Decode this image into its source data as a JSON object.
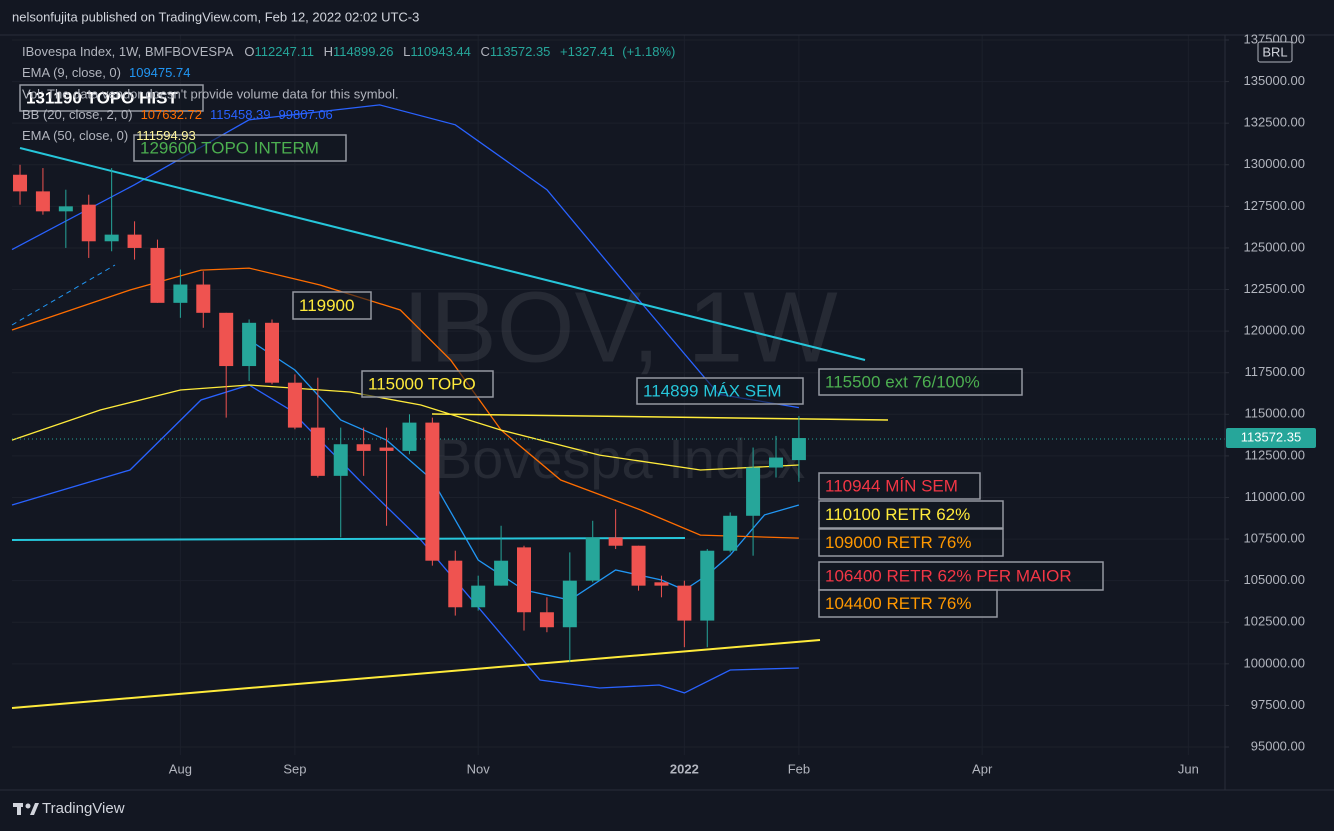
{
  "publisher": "nelsonfujita published on TradingView.com, Feb 12, 2022 02:02 UTC-3",
  "footer_brand": "TradingView",
  "chart_data": {
    "type": "candlestick",
    "title": "IBovespa Index, 1W, BMFBOVESPA",
    "currency": "BRL",
    "watermark": {
      "symbol": "IBOV, 1W",
      "description": "Bovespa Index"
    },
    "legend_letters": [
      "O",
      "H",
      "L",
      "C"
    ],
    "change": "+1327.41",
    "change_pct": "(+1.18%)",
    "up_color": "#26a69a",
    "down_color": "#ef5350",
    "open": [
      129400,
      128400,
      127200,
      127600,
      125400,
      125800,
      125000,
      121700,
      122800,
      121100,
      117900,
      120500,
      116900,
      114200,
      111300,
      113200,
      113000,
      112800,
      114500,
      106200,
      103400,
      104700,
      107000,
      103100,
      102200,
      105000,
      107600,
      107100,
      104900,
      104700,
      102600,
      106800,
      108900,
      111800,
      112247.11
    ],
    "high": [
      130000,
      129800,
      128500,
      128200,
      129800,
      126600,
      125500,
      123700,
      123600,
      121100,
      120700,
      120700,
      117400,
      117200,
      114200,
      114200,
      114200,
      115000,
      114800,
      106800,
      105300,
      108300,
      107100,
      104000,
      106700,
      108600,
      109300,
      107100,
      105300,
      105000,
      106900,
      109100,
      113000,
      113700,
      114899.26
    ],
    "low": [
      127600,
      127000,
      125000,
      124400,
      124800,
      124300,
      121700,
      120800,
      120200,
      114800,
      117000,
      116800,
      114100,
      111200,
      107600,
      111300,
      108300,
      112600,
      105900,
      102900,
      103200,
      104700,
      102000,
      101900,
      100100,
      104900,
      106900,
      104400,
      104000,
      101000,
      101000,
      106700,
      106500,
      111200,
      110943.44
    ],
    "close": [
      128400,
      127200,
      127500,
      125400,
      125800,
      125000,
      121700,
      122800,
      121100,
      117900,
      120500,
      116900,
      114200,
      111300,
      113200,
      112800,
      112800,
      114500,
      106200,
      103400,
      104700,
      106200,
      103100,
      102200,
      105000,
      107600,
      107100,
      104700,
      104700,
      102600,
      106800,
      108900,
      111800,
      112400,
      113572.35
    ],
    "indicators": [
      {
        "name": "EMA (9, close, 0)",
        "legend_values": [
          109475.74
        ],
        "legend_colors": [
          "#2196f3"
        ],
        "lines": [
          {
            "color": "#2196f3",
            "x": [
              10,
              12,
              14,
              16,
              18,
              20,
              22,
              24,
              26,
              28,
              29,
              30,
              31,
              32.5,
              34
            ],
            "values": [
              119470,
              117660,
              114660,
              113450,
              111050,
              106240,
              104440,
              103840,
              105640,
              105040,
              104440,
              105340,
              106540,
              108950,
              109550
            ]
          }
        ]
      },
      {
        "name": "BB (20, close, 2, 0)",
        "legend_values": [
          107632.72,
          115458.39,
          99807.06
        ],
        "legend_colors": [
          "#ff6d00",
          "#2962ff",
          "#2962ff"
        ],
        "lines": [
          {
            "color": "#ff6d00",
            "x": [
              -0.35,
              4.8,
              7.9,
              10,
              13.1,
              16.6,
              18.8,
              21,
              23.6,
              27.1,
              29.7,
              34
            ],
            "values": [
              120070,
              122470,
              123670,
              123790,
              122770,
              121270,
              118260,
              114050,
              111050,
              109250,
              107740,
              107560
            ]
          },
          {
            "color": "#2962ff",
            "x": [
              -0.35,
              5,
              10,
              15.7,
              19,
              23,
              27,
              30.5,
              34
            ],
            "values": [
              124900,
              128800,
              132700,
              133600,
              132400,
              128500,
              121900,
              116200,
              115400
            ]
          },
          {
            "color": "#2962ff",
            "x": [
              -0.35,
              4.8,
              7.9,
              10,
              11.8,
              14.8,
              17.5,
              20.1,
              22.7,
              25.3,
              27.9,
              29,
              31,
              34
            ],
            "values": [
              109550,
              111650,
              115860,
              116760,
              115260,
              111050,
              107440,
              103240,
              99030,
              98550,
              98730,
              98250,
              99630,
              99750
            ]
          }
        ]
      },
      {
        "name": "EMA (50, close, 0)",
        "legend_values": [
          111594.93
        ],
        "legend_colors": [
          "#fff59d"
        ],
        "lines": [
          {
            "color": "#ffeb3b",
            "x": [
              -0.35,
              3.5,
              7,
              10,
              14.4,
              17.5,
              21,
              25.3,
              29.7,
              34
            ],
            "values": [
              113450,
              115260,
              116460,
              116760,
              116340,
              115560,
              114050,
              112550,
              111650,
              111950
            ]
          }
        ]
      }
    ],
    "volume_note": "Vol: The data vendor doesn't provide volume data for this symbol.",
    "annotations": [
      {
        "text": "131190 TOPO HIST",
        "color": "#ffffff"
      },
      {
        "text": "129600 TOPO INTERM",
        "color": "#4caf50"
      },
      {
        "text": "119900",
        "color": "#ffeb3b"
      },
      {
        "text": "115000 TOPO",
        "color": "#ffeb3b"
      },
      {
        "text": "114899 MÁX SEM",
        "color": "#26c6da"
      },
      {
        "text": "115500 ext 76/100%",
        "color": "#4caf50"
      },
      {
        "text": "110944 MÍN SEM",
        "color": "#f23645"
      },
      {
        "text": "110100 RETR 62%",
        "color": "#ffeb3b"
      },
      {
        "text": "109000 RETR 76%",
        "color": "#ff9800"
      },
      {
        "text": "106400 RETR 62% PER MAIOR",
        "color": "#f23645"
      },
      {
        "text": "104400 RETR 76%",
        "color": "#ff9800"
      }
    ],
    "ylim": [
      94520,
      137800
    ],
    "yticks": [
      {
        "value": 95000,
        "label": "95000.00"
      },
      {
        "value": 97500,
        "label": "97500.00"
      },
      {
        "value": 100000,
        "label": "100000.00"
      },
      {
        "value": 102500,
        "label": "102500.00"
      },
      {
        "value": 105000,
        "label": "105000.00"
      },
      {
        "value": 107500,
        "label": "107500.00"
      },
      {
        "value": 110000,
        "label": "110000.00"
      },
      {
        "value": 112500,
        "label": "112500.00"
      },
      {
        "value": 115000,
        "label": "115000.00"
      },
      {
        "value": 117500,
        "label": "117500.00"
      },
      {
        "value": 120000,
        "label": "120000.00"
      },
      {
        "value": 122500,
        "label": "122500.00"
      },
      {
        "value": 125000,
        "label": "125000.00"
      },
      {
        "value": 127500,
        "label": "127500.00"
      },
      {
        "value": 130000,
        "label": "130000.00"
      },
      {
        "value": 132500,
        "label": "132500.00"
      },
      {
        "value": 135000,
        "label": "135000.00"
      },
      {
        "value": 137500,
        "label": "137500.00"
      }
    ],
    "xlim": [
      -0.35,
      52.6
    ],
    "xticks": [
      {
        "value": 7,
        "label": "Aug"
      },
      {
        "value": 12,
        "label": "Sep"
      },
      {
        "value": 20,
        "label": "Nov"
      },
      {
        "value": 29,
        "label": "2022"
      },
      {
        "value": 34,
        "label": "Feb"
      },
      {
        "value": 42,
        "label": "Apr"
      },
      {
        "value": 51,
        "label": "Jun"
      }
    ],
    "grid": true
  }
}
